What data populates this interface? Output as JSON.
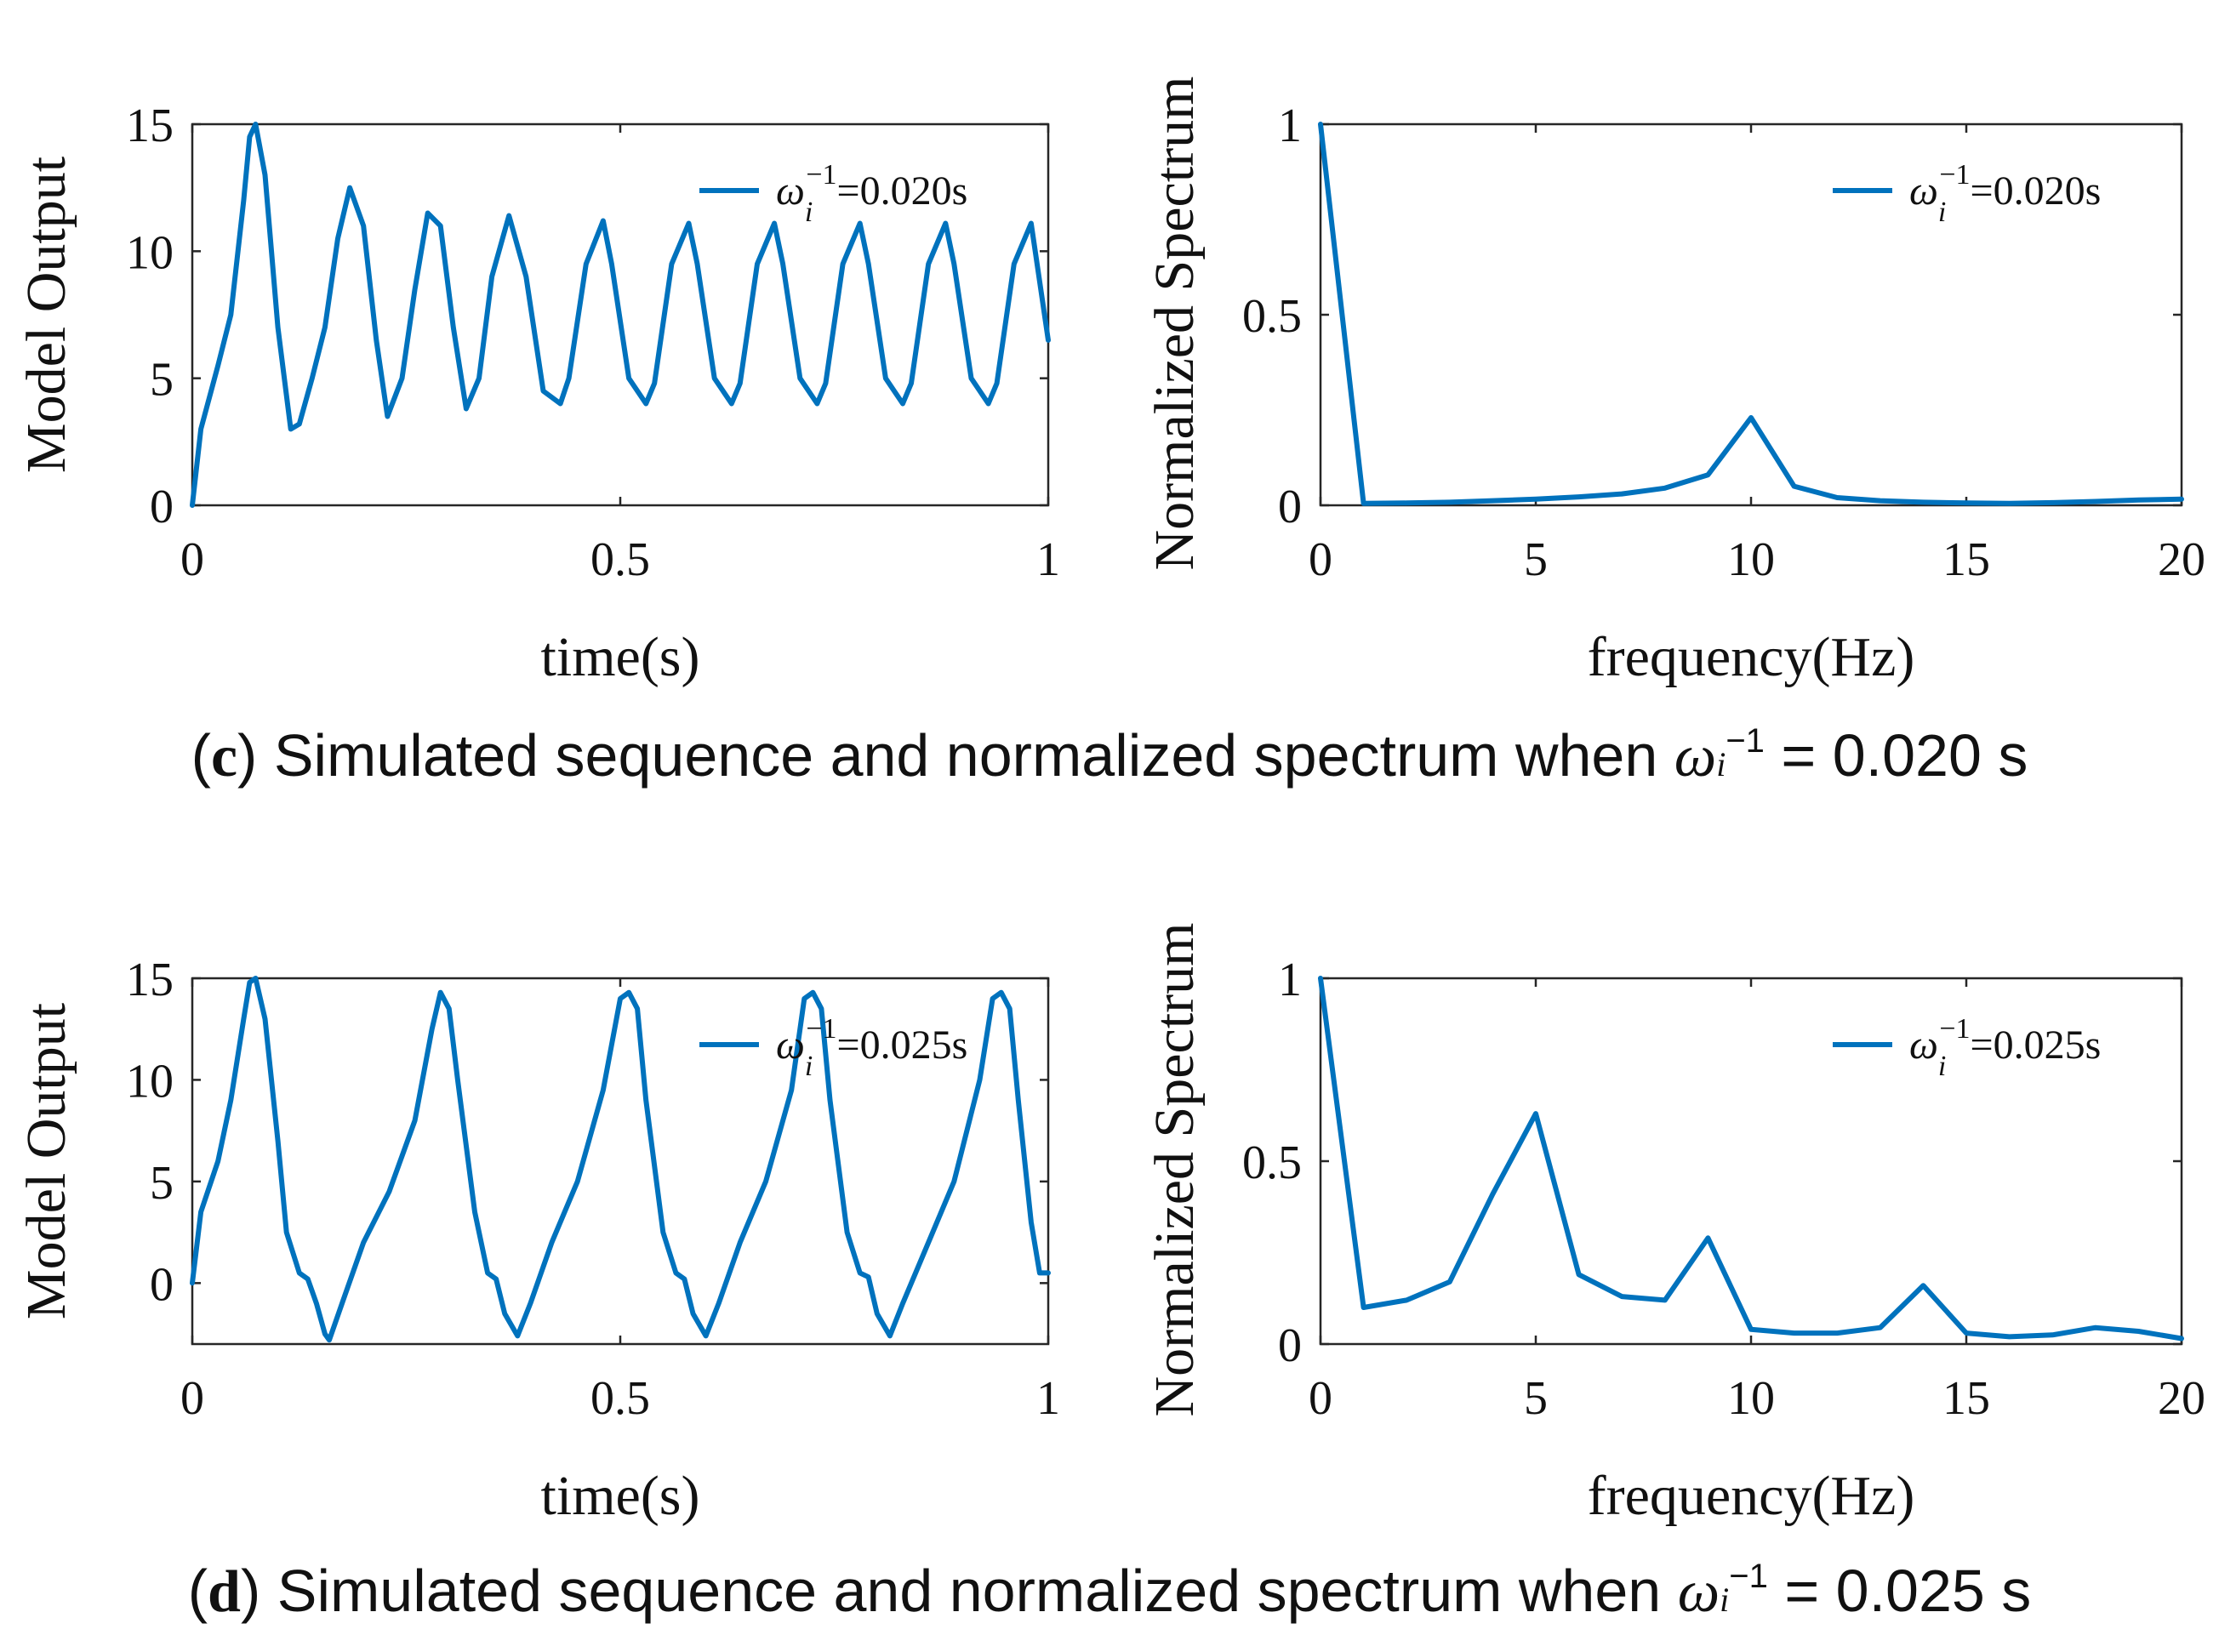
{
  "colors": {
    "line": "#0072BD",
    "axis": "#262626",
    "text": "#111111"
  },
  "captions": {
    "c": {
      "letter": "c",
      "text": "Simulated sequence and normalized spectrum when",
      "symbol": "ω",
      "sub": "i",
      "sup": "−1",
      "value": "= 0.020 s"
    },
    "d": {
      "letter": "d",
      "text": "Simulated sequence and normalized spectrum when",
      "symbol": "ω",
      "sub": "i",
      "sup": "−1",
      "value": "= 0.025 s"
    }
  },
  "chart_data": [
    {
      "id": "c-time",
      "type": "line",
      "xlabel": "time(s)",
      "ylabel": "Model Output",
      "xlim": [
        0,
        1
      ],
      "ylim": [
        0,
        15
      ],
      "xticks": [
        0,
        0.5,
        1
      ],
      "xtick_labels": [
        "0",
        "0.5",
        "1"
      ],
      "yticks": [
        0,
        5,
        10,
        15
      ],
      "ytick_labels": [
        "0",
        "5",
        "10",
        "15"
      ],
      "legend": {
        "symbol": "ω",
        "sub": "i",
        "sup": "−1",
        "value": "=0.020s",
        "position": "top-right"
      },
      "series": [
        {
          "name": "ω_i^-1=0.020s",
          "x": [
            0,
            0.01,
            0.03,
            0.045,
            0.06,
            0.067,
            0.074,
            0.085,
            0.1,
            0.115,
            0.125,
            0.14,
            0.155,
            0.17,
            0.184,
            0.2,
            0.215,
            0.228,
            0.245,
            0.26,
            0.275,
            0.29,
            0.305,
            0.32,
            0.335,
            0.35,
            0.37,
            0.39,
            0.41,
            0.43,
            0.44,
            0.46,
            0.48,
            0.49,
            0.51,
            0.53,
            0.54,
            0.56,
            0.58,
            0.59,
            0.61,
            0.63,
            0.64,
            0.66,
            0.68,
            0.69,
            0.71,
            0.73,
            0.74,
            0.76,
            0.78,
            0.79,
            0.81,
            0.83,
            0.84,
            0.86,
            0.88,
            0.89,
            0.91,
            0.93,
            0.94,
            0.96,
            0.98,
            1.0
          ],
          "y": [
            0,
            3,
            5.5,
            7.5,
            12,
            14.5,
            15,
            13,
            7,
            3,
            3.2,
            5,
            7,
            10.5,
            12.5,
            11,
            6.5,
            3.5,
            5,
            8.5,
            11.5,
            11,
            7,
            3.8,
            5,
            9,
            11.4,
            9,
            4.5,
            4,
            5,
            9.5,
            11.2,
            9.5,
            5,
            4,
            4.8,
            9.5,
            11.1,
            9.5,
            5,
            4,
            4.8,
            9.5,
            11.1,
            9.5,
            5,
            4,
            4.8,
            9.5,
            11.1,
            9.5,
            5,
            4,
            4.8,
            9.5,
            11.1,
            9.5,
            5,
            4,
            4.8,
            9.5,
            11.1,
            6.5
          ]
        }
      ]
    },
    {
      "id": "c-spectrum",
      "type": "line",
      "xlabel": "frequency(Hz)",
      "ylabel": "Normalized Spectrum",
      "xlim": [
        0,
        20
      ],
      "ylim": [
        0,
        1
      ],
      "xticks": [
        0,
        5,
        10,
        15,
        20
      ],
      "xtick_labels": [
        "0",
        "5",
        "10",
        "15",
        "20"
      ],
      "yticks": [
        0,
        0.5,
        1
      ],
      "ytick_labels": [
        "0",
        "0.5",
        "1"
      ],
      "legend": {
        "symbol": "ω",
        "sub": "i",
        "sup": "−1",
        "value": "=0.020s",
        "position": "top-right"
      },
      "series": [
        {
          "name": "ω_i^-1=0.020s",
          "x": [
            0,
            1,
            2,
            3,
            4,
            5,
            6,
            7,
            8,
            9,
            10,
            11,
            12,
            13,
            14,
            15,
            16,
            17,
            18,
            19,
            20
          ],
          "y": [
            1.0,
            0.005,
            0.006,
            0.008,
            0.012,
            0.016,
            0.022,
            0.03,
            0.045,
            0.08,
            0.23,
            0.05,
            0.02,
            0.012,
            0.008,
            0.006,
            0.005,
            0.007,
            0.01,
            0.014,
            0.016
          ]
        }
      ]
    },
    {
      "id": "d-time",
      "type": "line",
      "xlabel": "time(s)",
      "ylabel": "Model Output",
      "xlim": [
        0,
        1
      ],
      "ylim": [
        -3,
        15
      ],
      "xticks": [
        0,
        0.5,
        1
      ],
      "xtick_labels": [
        "0",
        "0.5",
        "1"
      ],
      "yticks": [
        0,
        5,
        10,
        15
      ],
      "ytick_labels": [
        "0",
        "5",
        "10",
        "15"
      ],
      "legend": {
        "symbol": "ω",
        "sub": "i",
        "sup": "−1",
        "value": "=0.025s",
        "position": "top-right"
      },
      "series": [
        {
          "name": "ω_i^-1=0.025s",
          "x": [
            0,
            0.01,
            0.03,
            0.045,
            0.06,
            0.067,
            0.074,
            0.085,
            0.1,
            0.11,
            0.125,
            0.135,
            0.145,
            0.155,
            0.16,
            0.175,
            0.2,
            0.23,
            0.26,
            0.28,
            0.29,
            0.3,
            0.31,
            0.33,
            0.345,
            0.355,
            0.365,
            0.38,
            0.395,
            0.42,
            0.45,
            0.48,
            0.5,
            0.51,
            0.52,
            0.53,
            0.55,
            0.565,
            0.575,
            0.585,
            0.6,
            0.615,
            0.64,
            0.67,
            0.7,
            0.715,
            0.725,
            0.735,
            0.745,
            0.765,
            0.78,
            0.79,
            0.8,
            0.815,
            0.83,
            0.86,
            0.89,
            0.92,
            0.935,
            0.945,
            0.955,
            0.965,
            0.98,
            0.99,
            1.0
          ],
          "y": [
            0,
            3.5,
            6,
            9,
            13,
            14.8,
            15,
            13,
            7,
            2.5,
            0.5,
            0.2,
            -1,
            -2.5,
            -2.8,
            -1,
            2,
            4.5,
            8,
            12.5,
            14.3,
            13.5,
            10,
            3.5,
            0.5,
            0.2,
            -1.5,
            -2.6,
            -1,
            2,
            5,
            9.5,
            14,
            14.3,
            13.5,
            9,
            2.5,
            0.5,
            0.2,
            -1.5,
            -2.6,
            -1,
            2,
            5,
            9.5,
            14,
            14.3,
            13.5,
            9,
            2.5,
            0.5,
            0.3,
            -1.5,
            -2.6,
            -1,
            2,
            5,
            10,
            14,
            14.3,
            13.5,
            9,
            3,
            0.5,
            0.5
          ]
        }
      ]
    },
    {
      "id": "d-spectrum",
      "type": "line",
      "xlabel": "frequency(Hz)",
      "ylabel": "Normalized Spectrum",
      "xlim": [
        0,
        20
      ],
      "ylim": [
        0,
        1
      ],
      "xticks": [
        0,
        5,
        10,
        15,
        20
      ],
      "xtick_labels": [
        "0",
        "5",
        "10",
        "15",
        "20"
      ],
      "yticks": [
        0,
        0.5,
        1
      ],
      "ytick_labels": [
        "0",
        "0.5",
        "1"
      ],
      "legend": {
        "symbol": "ω",
        "sub": "i",
        "sup": "−1",
        "value": "=0.025s",
        "position": "top-right"
      },
      "series": [
        {
          "name": "ω_i^-1=0.025s",
          "x": [
            0,
            1,
            2,
            3,
            4,
            5,
            6,
            7,
            8,
            9,
            10,
            11,
            12,
            13,
            14,
            15,
            16,
            17,
            18,
            19,
            20
          ],
          "y": [
            1.0,
            0.1,
            0.12,
            0.17,
            0.41,
            0.63,
            0.19,
            0.13,
            0.12,
            0.29,
            0.04,
            0.03,
            0.03,
            0.045,
            0.16,
            0.03,
            0.02,
            0.025,
            0.045,
            0.035,
            0.015
          ]
        }
      ]
    }
  ]
}
